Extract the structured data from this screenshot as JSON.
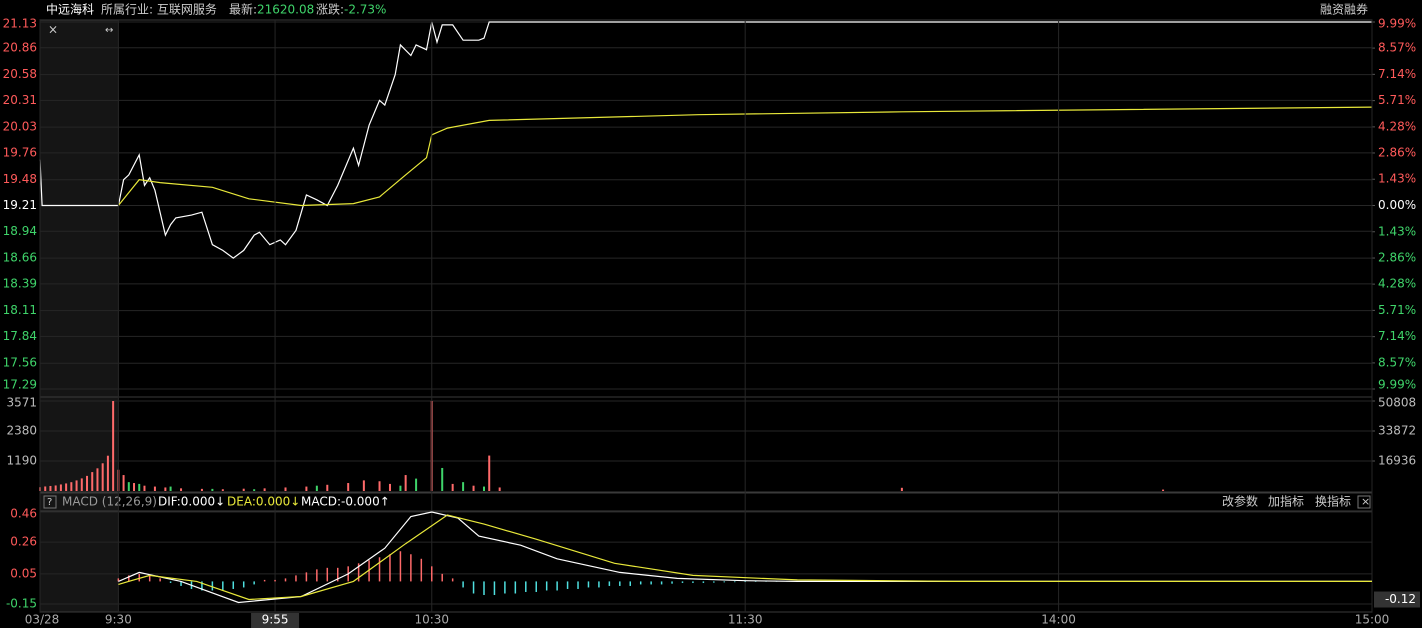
{
  "header": {
    "name": "中远海科",
    "industry": "所属行业: 互联网服务",
    "latest_label": "最新:",
    "latest": "21620.08",
    "change_label": "涨跌:",
    "change": "-2.73%",
    "margin": "融资融券"
  },
  "chart_data": [
    {
      "type": "line",
      "xlim": [
        -15,
        240
      ],
      "ylim": [
        17.29,
        21.13
      ],
      "yticks": [
        21.13,
        20.86,
        20.58,
        20.31,
        20.03,
        19.76,
        19.48,
        19.21,
        18.94,
        18.66,
        18.39,
        18.11,
        17.84,
        17.56,
        17.29
      ],
      "y2lim": [
        -9.99,
        9.99
      ],
      "y2ticks": [
        {
          "value": 9.99,
          "label": "9.99%"
        },
        {
          "value": 8.57,
          "label": "8.57%"
        },
        {
          "value": 7.14,
          "label": "7.14%"
        },
        {
          "value": 5.71,
          "label": "5.71%"
        },
        {
          "value": 4.28,
          "label": "4.28%"
        },
        {
          "value": 2.86,
          "label": "2.86%"
        },
        {
          "value": 1.43,
          "label": "1.43%"
        },
        {
          "value": 0,
          "label": "0.00%"
        },
        {
          "value": -1.43,
          "label": "1.43%"
        },
        {
          "value": -2.86,
          "label": "2.86%"
        },
        {
          "value": -4.28,
          "label": "4.28%"
        },
        {
          "value": -5.71,
          "label": "5.71%"
        },
        {
          "value": -7.14,
          "label": "7.14%"
        },
        {
          "value": -8.57,
          "label": "8.57%"
        },
        {
          "value": -9.99,
          "label": "9.99%"
        }
      ],
      "series": [
        {
          "color": "#ffffff",
          "x": [
            -15,
            -14.6,
            0,
            1,
            2,
            4,
            5,
            6,
            7,
            9,
            10,
            11,
            14,
            16,
            18,
            20,
            22,
            24,
            26,
            27,
            29,
            31,
            32,
            34,
            36,
            38,
            40,
            42,
            45,
            46,
            48,
            50,
            51,
            53,
            54,
            56,
            57,
            59,
            60,
            61,
            62,
            64,
            66,
            69,
            70,
            71,
            240
          ],
          "values": [
            19.69,
            19.21,
            19.21,
            19.48,
            19.53,
            19.74,
            19.42,
            19.5,
            19.37,
            18.9,
            19.01,
            19.08,
            19.11,
            19.14,
            18.8,
            18.74,
            18.66,
            18.74,
            18.9,
            18.93,
            18.8,
            18.85,
            18.8,
            18.95,
            19.32,
            19.27,
            19.21,
            19.42,
            19.81,
            19.63,
            20.05,
            20.31,
            20.26,
            20.58,
            20.89,
            20.78,
            20.89,
            20.84,
            21.13,
            20.92,
            21.1,
            21.1,
            20.94,
            20.94,
            20.96,
            21.13,
            21.13
          ]
        },
        {
          "color": "#e8e83a",
          "x": [
            0,
            4,
            8,
            18,
            25,
            35,
            45,
            50,
            55,
            59,
            60,
            63,
            71,
            111,
            150,
            240
          ],
          "values": [
            19.21,
            19.48,
            19.45,
            19.4,
            19.28,
            19.21,
            19.23,
            19.3,
            19.53,
            19.71,
            19.95,
            20.02,
            20.1,
            20.16,
            20.19,
            20.24
          ]
        }
      ]
    },
    {
      "type": "bar",
      "xlim": [
        -15,
        240
      ],
      "ylim": [
        0,
        3571
      ],
      "yticks": [
        1190,
        2380,
        3571
      ],
      "y2lim": [
        0,
        50808
      ],
      "y2ticks": [
        16936,
        33872,
        50808
      ],
      "series": [
        {
          "color": "#ff6a6a",
          "axis": "y",
          "x": [
            -15,
            -14,
            -13,
            -12,
            -11,
            -10,
            -9,
            -8,
            -7,
            -6,
            -5,
            -4,
            -3,
            -2,
            -1
          ],
          "values": [
            150,
            180,
            200,
            220,
            260,
            300,
            350,
            420,
            500,
            600,
            750,
            900,
            1100,
            1400,
            3571
          ]
        },
        {
          "color": "#ff6a6a",
          "axis": "y2",
          "x": [
            0,
            1,
            3,
            5,
            7,
            9,
            12,
            16,
            20,
            24,
            28,
            32,
            36,
            40,
            44,
            47,
            50,
            52,
            55,
            60,
            64,
            68,
            71,
            73,
            150,
            200
          ],
          "values": [
            12000,
            9000,
            4500,
            3000,
            2500,
            2000,
            1500,
            1200,
            1000,
            1300,
            1500,
            2000,
            2500,
            3500,
            4500,
            6000,
            5500,
            4000,
            9000,
            50808,
            4000,
            3000,
            20000,
            2000,
            1800,
            800
          ]
        },
        {
          "color": "#3fd46a",
          "axis": "y2",
          "x": [
            2,
            4,
            10,
            18,
            26,
            38,
            54,
            57,
            62,
            66,
            70
          ],
          "values": [
            5000,
            4000,
            2500,
            1200,
            1000,
            3000,
            3000,
            7000,
            13000,
            5000,
            2500
          ]
        }
      ]
    },
    {
      "type": "macd",
      "title": "MACD (12,26,9)",
      "dif_label": "DIF:0.000↓",
      "dea_label": "DEA:0.000↓",
      "macd_label": "MACD:-0.000↑",
      "buttons": [
        "改参数",
        "加指标",
        "换指标"
      ],
      "xlim": [
        -15,
        240
      ],
      "ylim": [
        -0.2,
        0.46
      ],
      "yticks": [
        0.46,
        0.26,
        0.05,
        -0.15
      ],
      "cursor_value": -0.12,
      "xticks": [
        {
          "value": -15,
          "label": "03/28"
        },
        {
          "value": 0,
          "label": "9:30"
        },
        {
          "value": 30,
          "label": "9:55",
          "highlight": true
        },
        {
          "value": 60,
          "label": "10:30"
        },
        {
          "value": 120,
          "label": "11:30"
        },
        {
          "value": 180,
          "label": "14:00"
        },
        {
          "value": 240,
          "label": "15:00"
        }
      ],
      "series": [
        {
          "color": "#ffffff",
          "x": [
            0,
            4,
            12,
            23,
            29,
            35,
            44,
            51,
            56,
            60,
            65,
            69,
            77,
            84,
            96,
            107,
            120,
            130,
            240
          ],
          "values": [
            0,
            0.06,
            0,
            -0.14,
            -0.12,
            -0.1,
            0.05,
            0.22,
            0.43,
            0.46,
            0.42,
            0.3,
            0.24,
            0.15,
            0.06,
            0.02,
            0.005,
            0,
            0
          ]
        },
        {
          "color": "#e8e83a",
          "x": [
            0,
            6,
            15,
            25,
            35,
            45,
            55,
            63,
            70,
            80,
            95,
            110,
            130,
            160,
            240
          ],
          "values": [
            -0.02,
            0.04,
            0,
            -0.12,
            -0.1,
            0,
            0.25,
            0.44,
            0.38,
            0.28,
            0.12,
            0.04,
            0.01,
            0,
            0
          ]
        }
      ],
      "histogram": {
        "up_color": "#ff6a6a",
        "down_color": "#4fe0e0",
        "x": [
          0,
          2,
          4,
          6,
          8,
          10,
          12,
          14,
          16,
          18,
          20,
          22,
          24,
          26,
          28,
          30,
          32,
          34,
          36,
          38,
          40,
          42,
          44,
          46,
          48,
          50,
          52,
          54,
          56,
          58,
          60,
          62,
          64,
          66,
          68,
          70,
          72,
          74,
          76,
          78,
          80,
          82,
          84,
          86,
          88,
          90,
          92,
          94,
          96,
          98,
          100,
          102,
          104,
          106,
          108,
          110,
          112,
          114,
          116,
          118,
          120,
          122,
          124,
          126,
          128,
          130
        ],
        "values": [
          0.02,
          0.04,
          0.05,
          0.04,
          0.02,
          -0.01,
          -0.03,
          -0.05,
          -0.06,
          -0.06,
          -0.06,
          -0.05,
          -0.04,
          -0.02,
          0.01,
          0.01,
          0.02,
          0.04,
          0.06,
          0.08,
          0.09,
          0.09,
          0.1,
          0.12,
          0.14,
          0.16,
          0.18,
          0.2,
          0.18,
          0.15,
          0.1,
          0.05,
          0.02,
          -0.04,
          -0.08,
          -0.09,
          -0.09,
          -0.08,
          -0.08,
          -0.07,
          -0.07,
          -0.06,
          -0.06,
          -0.05,
          -0.05,
          -0.04,
          -0.04,
          -0.03,
          -0.03,
          -0.03,
          -0.02,
          -0.02,
          -0.02,
          -0.015,
          -0.01,
          -0.01,
          -0.01,
          -0.008,
          -0.006,
          -0.005,
          -0.004,
          -0.003,
          -0.002,
          -0.002,
          -0.001,
          -0.001
        ]
      }
    }
  ]
}
